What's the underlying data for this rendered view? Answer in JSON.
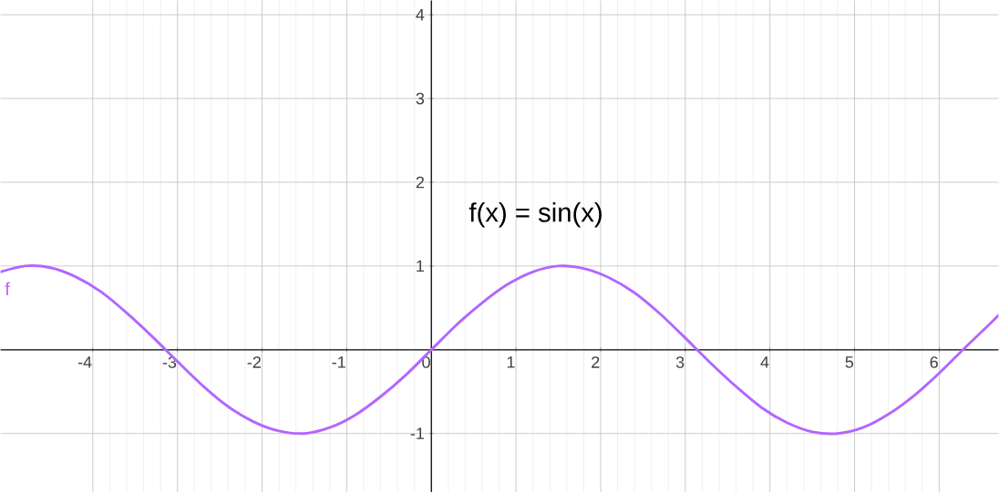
{
  "chart_data": {
    "type": "line",
    "annotations": [
      "f(x) = sin(x)"
    ],
    "x": [
      -5.09,
      -4.8,
      -4.5,
      -4.2,
      -3.9,
      -3.6,
      -3.3,
      -3.0,
      -2.7,
      -2.4,
      -2.1,
      -1.8,
      -1.5,
      -1.2,
      -0.9,
      -0.6,
      -0.3,
      0,
      0.3,
      0.6,
      0.9,
      1.2,
      1.5,
      1.8,
      2.1,
      2.4,
      2.7,
      3.0,
      3.3,
      3.6,
      3.9,
      4.2,
      4.5,
      4.8,
      5.1,
      5.4,
      5.7,
      6.0,
      6.3,
      6.6,
      6.7
    ],
    "series": [
      {
        "name": "f",
        "color": "#b366ff",
        "values": [
          0.93,
          1.0,
          0.98,
          0.87,
          0.69,
          0.44,
          0.16,
          -0.14,
          -0.43,
          -0.68,
          -0.86,
          -0.97,
          -1.0,
          -0.93,
          -0.78,
          -0.56,
          -0.3,
          0,
          0.3,
          0.56,
          0.78,
          0.93,
          1.0,
          0.97,
          0.86,
          0.68,
          0.43,
          0.14,
          -0.16,
          -0.44,
          -0.69,
          -0.87,
          -0.98,
          -1.0,
          -0.93,
          -0.77,
          -0.55,
          -0.28,
          0.02,
          0.31,
          0.41
        ]
      }
    ],
    "xlim": [
      -5.09,
      6.7
    ],
    "ylim": [
      -1.7,
      4.17
    ],
    "xticks": [
      -4,
      -3,
      -2,
      -1,
      0,
      1,
      2,
      3,
      4,
      5,
      6
    ],
    "yticks": [
      -1,
      1,
      2,
      3,
      4
    ],
    "grid": true,
    "marker": "none",
    "line_style": "solid",
    "legend": false
  }
}
